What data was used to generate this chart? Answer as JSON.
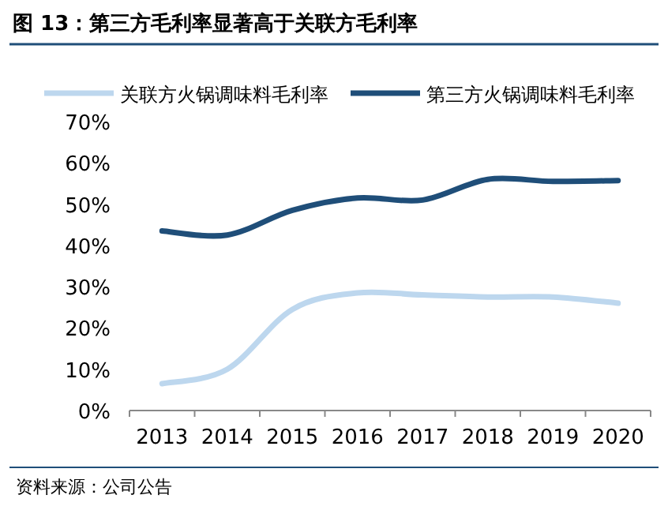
{
  "chart_data": {
    "type": "line",
    "title": "**图 13：**第三方毛利率显著高于关联方毛利率",
    "categories": [
      "2013",
      "2014",
      "2015",
      "2016",
      "2017",
      "2018",
      "2019",
      "2020"
    ],
    "series": [
      {
        "name": "关联方火锅调味料毛利率",
        "color": "#bdd7ee",
        "values": [
          6.5,
          10,
          24.5,
          28.5,
          28,
          27.5,
          27.5,
          26
        ]
      },
      {
        "name": "第三方火锅调味料毛利率",
        "color": "#1f4e79",
        "values": [
          43.5,
          42.5,
          48.5,
          51.5,
          51,
          56,
          55.5,
          55.7
        ]
      }
    ],
    "ylim": [
      0,
      70
    ],
    "yticks": [
      {
        "value": 0,
        "label": "0%"
      },
      {
        "value": 10,
        "label": "10%"
      },
      {
        "value": 20,
        "label": "20%"
      },
      {
        "value": 30,
        "label": "30%"
      },
      {
        "value": 40,
        "label": "40%"
      },
      {
        "value": 50,
        "label": "50%"
      },
      {
        "value": 60,
        "label": "60%"
      },
      {
        "value": 70,
        "label": "70%"
      }
    ],
    "legend": "top",
    "grid": false,
    "marker": "none",
    "line_style": "solid",
    "annotations": [
      "资料来源：公司公告"
    ]
  }
}
